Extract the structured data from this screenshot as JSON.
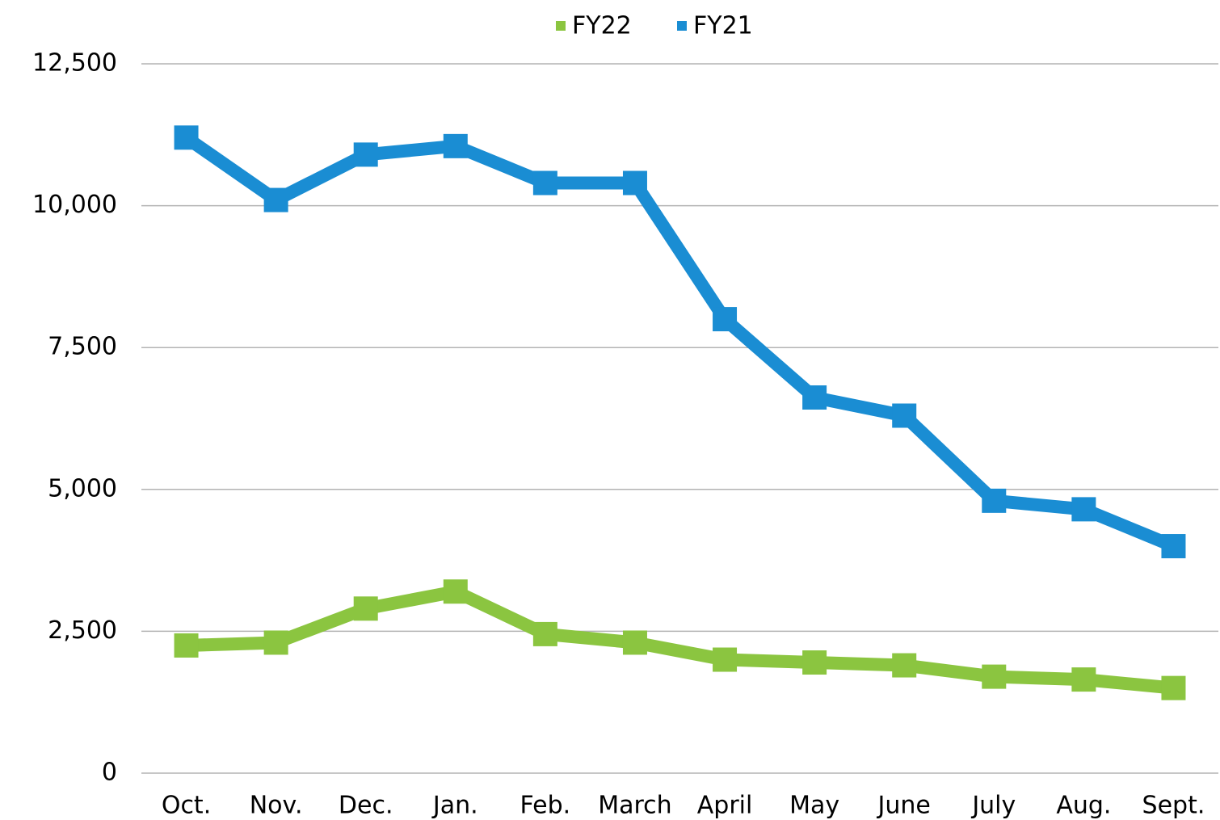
{
  "chart_data": {
    "type": "line",
    "categories": [
      "Oct.",
      "Nov.",
      "Dec.",
      "Jan.",
      "Feb.",
      "March",
      "April",
      "May",
      "June",
      "July",
      "Aug.",
      "Sept."
    ],
    "series": [
      {
        "name": "FY22",
        "color": "#8bc540",
        "values": [
          2250,
          2300,
          2900,
          3200,
          2450,
          2300,
          2000,
          1950,
          1900,
          1700,
          1650,
          1500
        ]
      },
      {
        "name": "FY21",
        "color": "#1a8dd3",
        "values": [
          11200,
          10100,
          10900,
          11050,
          10400,
          10400,
          8000,
          6620,
          6300,
          4800,
          4650,
          4000
        ]
      }
    ],
    "ylim": [
      0,
      12500
    ],
    "yticks": [
      0,
      {
        "value": 2500,
        "label": "2,500"
      },
      {
        "value": 5000,
        "label": "5,000"
      },
      {
        "value": 7500,
        "label": "7,500"
      },
      {
        "value": 10000,
        "label": "10,000"
      },
      {
        "value": 12500,
        "label": "12,500"
      }
    ],
    "grid": true,
    "legend": "top"
  }
}
